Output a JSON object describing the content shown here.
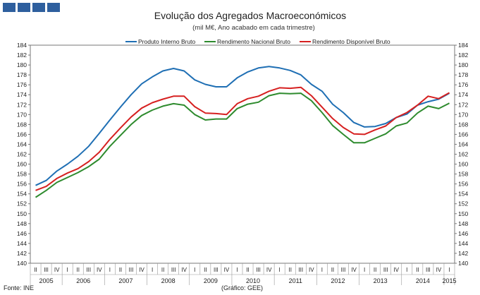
{
  "header": {
    "brand_name": "GEE"
  },
  "chart_data": {
    "type": "line",
    "title": "Evolução dos Agregados Macroeconómicos",
    "subtitle": "(mil M€, Ano acabado em cada trimestre)",
    "ylim": [
      140,
      184
    ],
    "yticks": [
      140,
      142,
      144,
      146,
      148,
      150,
      152,
      154,
      156,
      158,
      160,
      162,
      164,
      166,
      168,
      170,
      172,
      174,
      176,
      178,
      180,
      182,
      184
    ],
    "quarter_labels": [
      "II",
      "III",
      "IV",
      "I",
      "II",
      "III",
      "IV",
      "I",
      "II",
      "III",
      "IV",
      "I",
      "II",
      "III",
      "IV",
      "I",
      "II",
      "III",
      "IV",
      "I",
      "II",
      "III",
      "IV",
      "I",
      "II",
      "III",
      "IV",
      "I",
      "II",
      "III",
      "IV",
      "I",
      "II",
      "III",
      "IV",
      "I",
      "II",
      "III",
      "IV",
      "I"
    ],
    "years": [
      {
        "label": "2005",
        "start": 0,
        "end": 2
      },
      {
        "label": "2006",
        "start": 3,
        "end": 6
      },
      {
        "label": "2007",
        "start": 7,
        "end": 10
      },
      {
        "label": "2008",
        "start": 11,
        "end": 14
      },
      {
        "label": "2009",
        "start": 15,
        "end": 18
      },
      {
        "label": "2010",
        "start": 19,
        "end": 22
      },
      {
        "label": "2011",
        "start": 23,
        "end": 26
      },
      {
        "label": "2012",
        "start": 27,
        "end": 30
      },
      {
        "label": "2013",
        "start": 31,
        "end": 34
      },
      {
        "label": "2014",
        "start": 35,
        "end": 38
      },
      {
        "label": "2015",
        "start": 39,
        "end": 39
      }
    ],
    "series": [
      {
        "name": "Produto Interno Bruto",
        "color": "#1f6fb4",
        "values": [
          155.7,
          156.7,
          158.6,
          160.0,
          161.6,
          163.6,
          166.2,
          168.9,
          171.5,
          174.0,
          176.2,
          177.6,
          178.8,
          179.3,
          178.8,
          177.0,
          176.1,
          175.6,
          175.6,
          177.4,
          178.6,
          179.4,
          179.7,
          179.4,
          178.9,
          178.0,
          176.1,
          174.7,
          172.1,
          170.4,
          168.4,
          167.5,
          167.6,
          168.2,
          169.4,
          170.1,
          171.9,
          172.6,
          173.1,
          174.3
        ]
      },
      {
        "name": "Rendimento Nacional Bruto",
        "color": "#2e8b2e",
        "values": [
          153.3,
          154.7,
          156.3,
          157.3,
          158.3,
          159.5,
          161.0,
          163.6,
          165.8,
          168.0,
          169.8,
          170.9,
          171.7,
          172.2,
          171.9,
          170.0,
          168.9,
          169.1,
          169.1,
          171.2,
          172.1,
          172.5,
          173.8,
          174.3,
          174.2,
          174.3,
          172.8,
          170.4,
          167.8,
          166.0,
          164.3,
          164.3,
          165.2,
          166.1,
          167.7,
          168.3,
          170.3,
          171.7,
          171.2,
          172.3
        ]
      },
      {
        "name": "Rendimento Disponível Bruto",
        "color": "#d62020",
        "values": [
          154.7,
          155.5,
          157.1,
          158.2,
          159.1,
          160.5,
          162.4,
          165.0,
          167.3,
          169.5,
          171.3,
          172.4,
          173.1,
          173.7,
          173.7,
          171.6,
          170.3,
          170.2,
          170.0,
          172.2,
          173.2,
          173.7,
          174.7,
          175.4,
          175.3,
          175.5,
          173.8,
          171.5,
          169.2,
          167.4,
          166.1,
          166.0,
          166.9,
          167.7,
          169.4,
          170.4,
          171.9,
          173.7,
          173.2,
          174.4
        ]
      }
    ],
    "footnote_source": "Fonte: INE",
    "footnote_graph": "(Gráfico: GEE)"
  }
}
